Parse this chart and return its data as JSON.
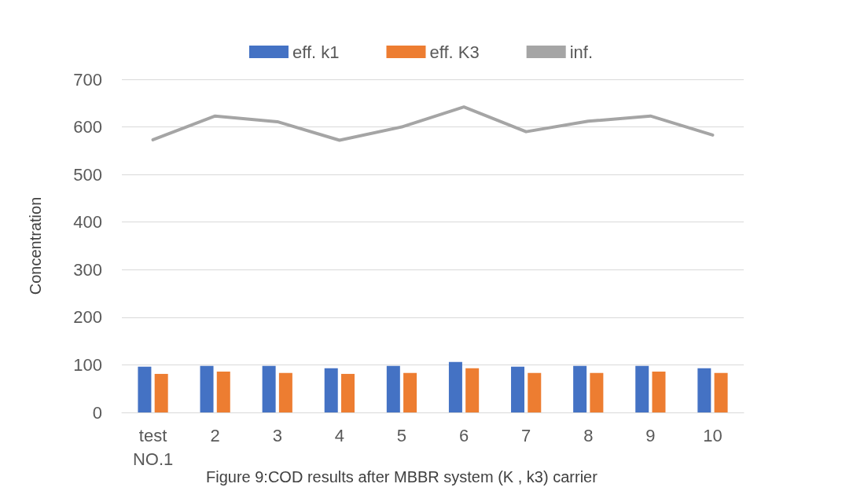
{
  "chart_data": {
    "type": "bar",
    "ylabel": "Concentration",
    "categories": [
      "test NO.1",
      "2",
      "3",
      "4",
      "5",
      "6",
      "7",
      "8",
      "9",
      "10"
    ],
    "series": [
      {
        "name": "eff. k1",
        "color": "#4472c4",
        "values": [
          96,
          98,
          98,
          93,
          98,
          106,
          96,
          98,
          98,
          93
        ]
      },
      {
        "name": "eff. K3",
        "color": "#ed7d31",
        "values": [
          81,
          86,
          83,
          81,
          83,
          93,
          83,
          83,
          86,
          83
        ]
      },
      {
        "name": "inf.",
        "type": "line",
        "color": "#a5a5a5",
        "values": [
          573,
          623,
          611,
          572,
          600,
          642,
          590,
          612,
          623,
          583
        ]
      }
    ],
    "ylim": [
      0,
      700
    ],
    "yticks": [
      0,
      100,
      200,
      300,
      400,
      500,
      600,
      700
    ],
    "grid": "y",
    "legend": "top",
    "marker": "none",
    "annotations": [
      "Figure 9:COD results after MBBR system (K , k3) carrier"
    ]
  }
}
